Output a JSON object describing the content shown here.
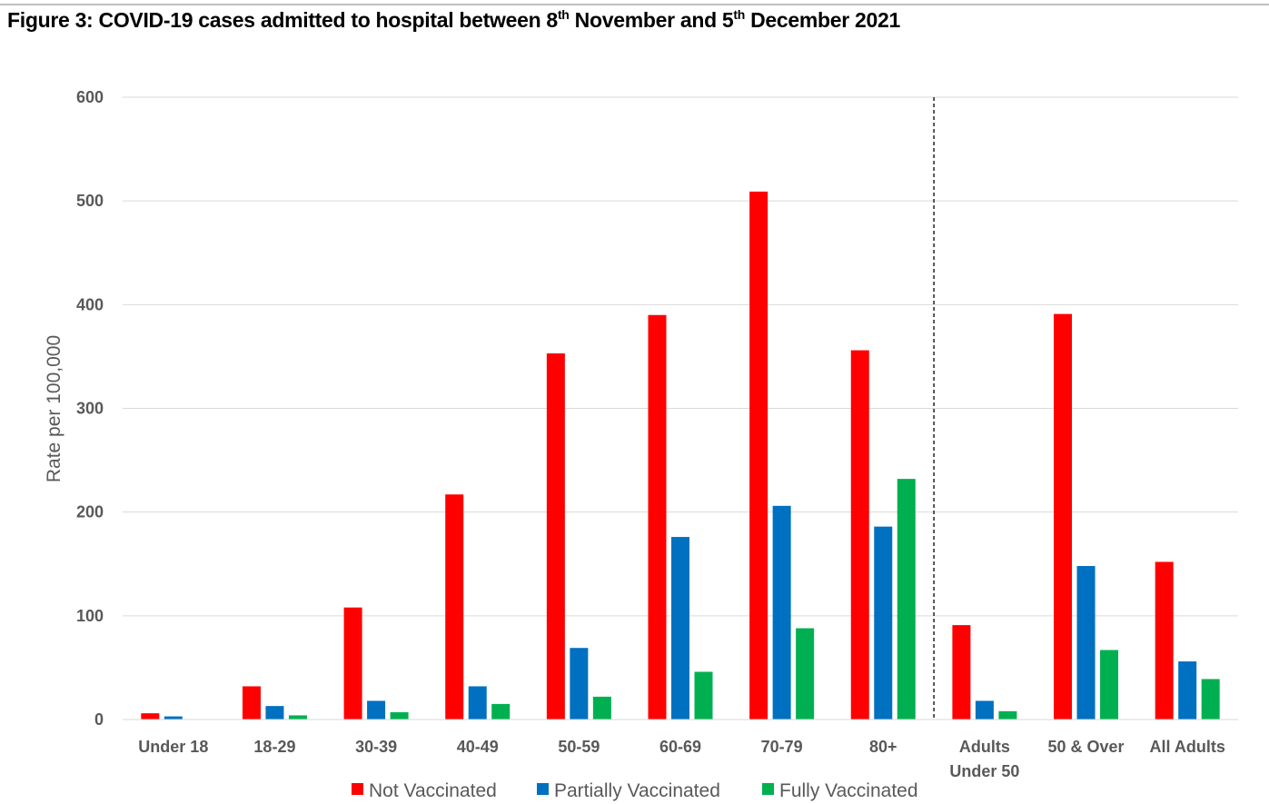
{
  "header": {
    "title_part1": "Figure 3: COVID-19 cases admitted to hospital between 8",
    "sup1": "th",
    "title_part2": " November and 5",
    "sup2": "th",
    "title_part3": " December 2021"
  },
  "chart_data": {
    "type": "bar",
    "title": "Figure 3: COVID-19 cases admitted to hospital between 8th November and 5th December 2021",
    "xlabel": "",
    "ylabel": "Rate per 100,000",
    "ylim": [
      0,
      600
    ],
    "yticks": [
      0,
      100,
      200,
      300,
      400,
      500,
      600
    ],
    "grid": true,
    "legend_position": "bottom",
    "categories": [
      [
        "Under 18"
      ],
      [
        "18-29"
      ],
      [
        "30-39"
      ],
      [
        "40-49"
      ],
      [
        "50-59"
      ],
      [
        "60-69"
      ],
      [
        "70-79"
      ],
      [
        "80+"
      ],
      [
        "Adults",
        "Under 50"
      ],
      [
        "50 & Over"
      ],
      [
        "All Adults"
      ]
    ],
    "divider_after_category": 7,
    "series": [
      {
        "name": "Not Vaccinated",
        "color": "#ff0000",
        "values": [
          6,
          32,
          108,
          217,
          353,
          390,
          509,
          356,
          91,
          391,
          152
        ]
      },
      {
        "name": "Partially Vaccinated",
        "color": "#0070c0",
        "values": [
          3,
          13,
          18,
          32,
          69,
          176,
          206,
          186,
          18,
          148,
          56
        ]
      },
      {
        "name": "Fully Vaccinated",
        "color": "#00b050",
        "values": [
          0,
          4,
          7,
          15,
          22,
          46,
          88,
          232,
          8,
          67,
          39
        ]
      }
    ]
  }
}
